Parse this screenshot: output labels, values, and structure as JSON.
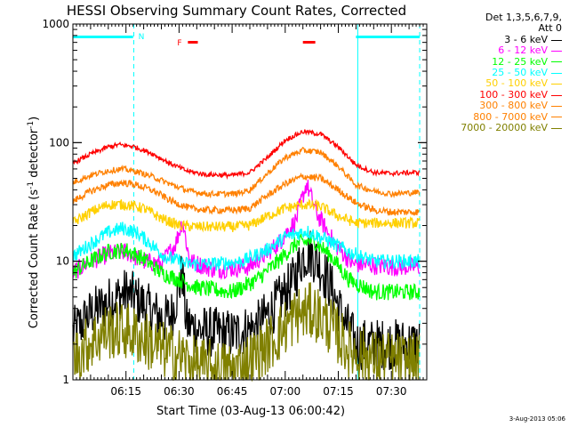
{
  "chart_data": {
    "type": "line",
    "title": "HESSI Observing Summary Count Rates, Corrected",
    "xlabel": "Start Time (03-Aug-13 06:00:42)",
    "ylabel_main": "Corrected Count Rate (s",
    "ylabel_sup1": "-1",
    "ylabel_mid": " detector",
    "ylabel_sup2": "-1",
    "ylabel_end": ")",
    "y_scale": "log",
    "ylim": [
      1,
      1000
    ],
    "y_ticks": [
      "1",
      "10",
      "100",
      "1000"
    ],
    "x_range_minutes": [
      0,
      100
    ],
    "x_ticks": [
      {
        "label": "06:15",
        "t": 15
      },
      {
        "label": "06:30",
        "t": 30
      },
      {
        "label": "06:45",
        "t": 45
      },
      {
        "label": "07:00",
        "t": 60
      },
      {
        "label": "07:15",
        "t": 75
      },
      {
        "label": "07:30",
        "t": 90
      }
    ],
    "legend_header": [
      "Det 1,3,5,6,7,9,",
      "Att 0"
    ],
    "series": [
      {
        "name": "3 - 6 keV",
        "color": "#000000",
        "points": [
          [
            0,
            2.5
          ],
          [
            5,
            3.6
          ],
          [
            10,
            4.5
          ],
          [
            15,
            5.4
          ],
          [
            18,
            4.8
          ],
          [
            22,
            3.8
          ],
          [
            26,
            3.2
          ],
          [
            28,
            3.6
          ],
          [
            31,
            8
          ],
          [
            32,
            3
          ],
          [
            36,
            2.6
          ],
          [
            45,
            2.4
          ],
          [
            52,
            2.8
          ],
          [
            58,
            4.5
          ],
          [
            62,
            6.5
          ],
          [
            65,
            11
          ],
          [
            67,
            12
          ],
          [
            70,
            9
          ],
          [
            73,
            6
          ],
          [
            76,
            3.5
          ],
          [
            80,
            2
          ],
          [
            90,
            2
          ],
          [
            97,
            2
          ]
        ]
      },
      {
        "name": "6 - 12 keV",
        "color": "#ff00ff",
        "points": [
          [
            0,
            8
          ],
          [
            5,
            10
          ],
          [
            10,
            11.5
          ],
          [
            15,
            12
          ],
          [
            20,
            10
          ],
          [
            25,
            9.5
          ],
          [
            29,
            14
          ],
          [
            31,
            22
          ],
          [
            33,
            10
          ],
          [
            40,
            8.5
          ],
          [
            50,
            9
          ],
          [
            58,
            14
          ],
          [
            63,
            22
          ],
          [
            66,
            45
          ],
          [
            69,
            25
          ],
          [
            74,
            14
          ],
          [
            79,
            9.5
          ],
          [
            90,
            9
          ],
          [
            97,
            9
          ]
        ]
      },
      {
        "name": "12 - 25 keV",
        "color": "#00ff00",
        "points": [
          [
            0,
            8
          ],
          [
            5,
            10
          ],
          [
            10,
            12
          ],
          [
            15,
            12.5
          ],
          [
            20,
            10.5
          ],
          [
            25,
            8
          ],
          [
            30,
            7
          ],
          [
            35,
            6
          ],
          [
            45,
            5.5
          ],
          [
            52,
            7
          ],
          [
            58,
            10
          ],
          [
            63,
            14
          ],
          [
            68,
            15
          ],
          [
            73,
            11
          ],
          [
            78,
            7
          ],
          [
            85,
            5.5
          ],
          [
            97,
            5.5
          ]
        ]
      },
      {
        "name": "25 - 50 keV",
        "color": "#00ffff",
        "points": [
          [
            0,
            11
          ],
          [
            5,
            14
          ],
          [
            10,
            17.5
          ],
          [
            14,
            19
          ],
          [
            18,
            17.5
          ],
          [
            22,
            14
          ],
          [
            26,
            11
          ],
          [
            32,
            9.5
          ],
          [
            40,
            9.5
          ],
          [
            48,
            10
          ],
          [
            55,
            12.5
          ],
          [
            60,
            16
          ],
          [
            66,
            18
          ],
          [
            72,
            15
          ],
          [
            78,
            12
          ],
          [
            85,
            10
          ],
          [
            97,
            10
          ]
        ]
      },
      {
        "name": "50 - 100 keV",
        "color": "#ffd000",
        "points": [
          [
            0,
            21
          ],
          [
            5,
            26
          ],
          [
            10,
            30
          ],
          [
            15,
            30
          ],
          [
            20,
            28
          ],
          [
            25,
            23
          ],
          [
            30,
            20
          ],
          [
            35,
            19.5
          ],
          [
            45,
            19.5
          ],
          [
            50,
            20
          ],
          [
            55,
            24
          ],
          [
            60,
            28
          ],
          [
            65,
            30
          ],
          [
            70,
            29
          ],
          [
            75,
            24
          ],
          [
            80,
            21
          ],
          [
            90,
            21
          ],
          [
            97,
            21
          ]
        ]
      },
      {
        "name": "100 - 300 keV",
        "color": "#ff0000",
        "points": [
          [
            0,
            67
          ],
          [
            5,
            80
          ],
          [
            10,
            92
          ],
          [
            13,
            96
          ],
          [
            17,
            93
          ],
          [
            22,
            82
          ],
          [
            27,
            68
          ],
          [
            32,
            58
          ],
          [
            37,
            54
          ],
          [
            45,
            53
          ],
          [
            50,
            56
          ],
          [
            55,
            75
          ],
          [
            60,
            105
          ],
          [
            65,
            124
          ],
          [
            70,
            118
          ],
          [
            75,
            92
          ],
          [
            80,
            65
          ],
          [
            85,
            56
          ],
          [
            90,
            55
          ],
          [
            97,
            56
          ]
        ]
      },
      {
        "name": "300 - 800 keV",
        "color": "#ff8000",
        "points": [
          [
            0,
            32
          ],
          [
            5,
            39
          ],
          [
            10,
            44
          ],
          [
            14,
            46
          ],
          [
            18,
            44
          ],
          [
            23,
            39
          ],
          [
            28,
            32
          ],
          [
            33,
            28
          ],
          [
            38,
            27
          ],
          [
            46,
            27
          ],
          [
            50,
            28
          ],
          [
            55,
            36
          ],
          [
            60,
            45
          ],
          [
            65,
            52
          ],
          [
            70,
            50
          ],
          [
            75,
            40
          ],
          [
            80,
            31
          ],
          [
            85,
            27
          ],
          [
            90,
            26
          ],
          [
            97,
            26
          ]
        ]
      },
      {
        "name": "800 - 7000 keV",
        "color": "#ff8000",
        "points": [
          [
            0,
            46
          ],
          [
            5,
            53
          ],
          [
            10,
            58
          ],
          [
            14,
            60
          ],
          [
            18,
            57
          ],
          [
            23,
            51
          ],
          [
            28,
            44
          ],
          [
            33,
            39
          ],
          [
            38,
            37
          ],
          [
            46,
            37
          ],
          [
            50,
            40
          ],
          [
            55,
            55
          ],
          [
            60,
            75
          ],
          [
            65,
            86
          ],
          [
            70,
            83
          ],
          [
            75,
            63
          ],
          [
            80,
            44
          ],
          [
            85,
            39
          ],
          [
            90,
            37
          ],
          [
            97,
            38
          ]
        ]
      },
      {
        "name": "7000 - 20000 keV",
        "color": "#808000",
        "points": [
          [
            0,
            1.5
          ],
          [
            5,
            2.1
          ],
          [
            10,
            2.6
          ],
          [
            15,
            2.6
          ],
          [
            20,
            2.2
          ],
          [
            25,
            1.8
          ],
          [
            30,
            1.6
          ],
          [
            35,
            1.3
          ],
          [
            45,
            1.2
          ],
          [
            52,
            1.6
          ],
          [
            58,
            2.4
          ],
          [
            63,
            3.5
          ],
          [
            68,
            3.8
          ],
          [
            73,
            2.8
          ],
          [
            78,
            1.8
          ],
          [
            85,
            1.5
          ],
          [
            97,
            1.4
          ]
        ]
      }
    ],
    "annotations": {
      "saa_label": "N",
      "flare_label": "F",
      "saa_color": "#00ffff",
      "flare_color": "#ff0000",
      "saa_bars": [
        [
          0,
          17
        ],
        [
          80,
          98
        ]
      ],
      "saa_dashed_lines_t": [
        17.2,
        98
      ],
      "saa_solid_line_t": 80.5,
      "flare_bars": [
        [
          32.5,
          35.3
        ],
        [
          65,
          68.5
        ]
      ]
    }
  },
  "timestamp": "3-Aug-2013 05:06"
}
